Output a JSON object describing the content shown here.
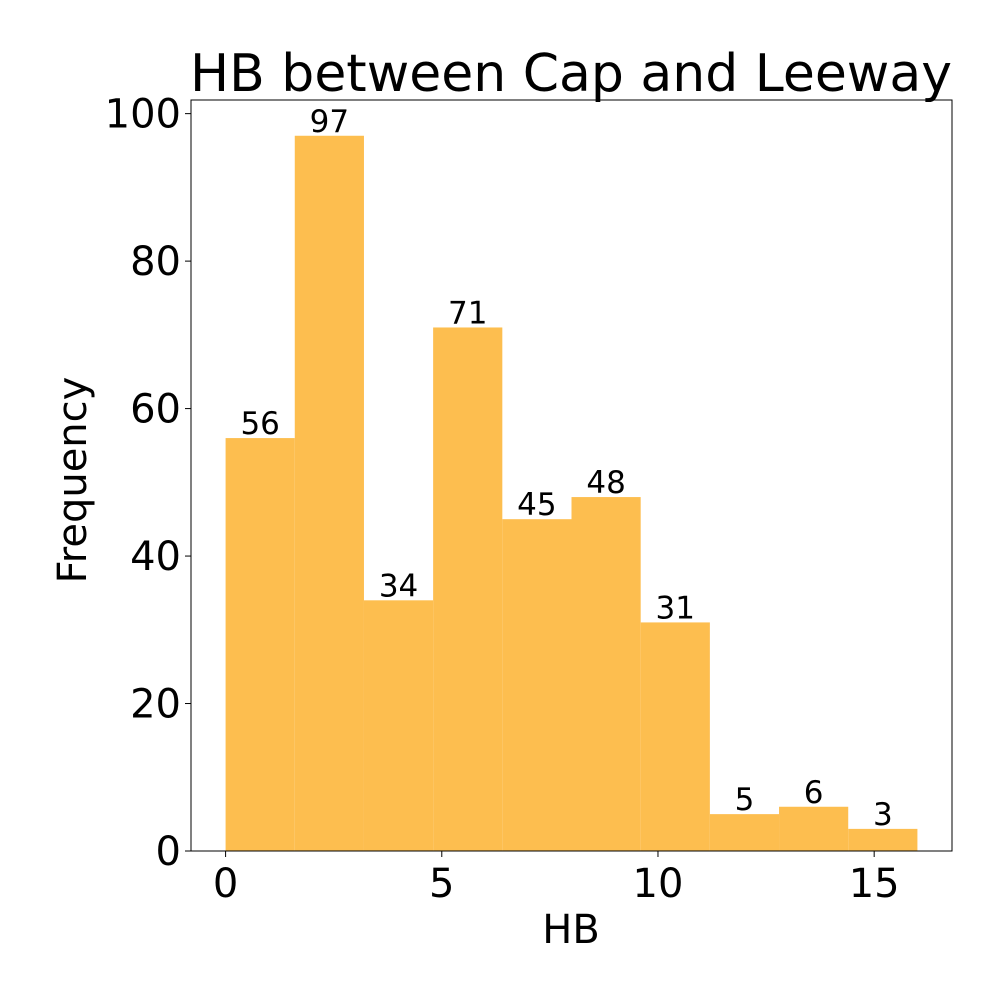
{
  "chart_data": {
    "type": "bar",
    "title": "HB between Cap and Leeway",
    "xlabel": "HB",
    "ylabel": "Frequency",
    "bin_edges": [
      0,
      1.6,
      3.2,
      4.8,
      6.4,
      8.0,
      9.6,
      11.2,
      12.8,
      14.4,
      16.0
    ],
    "values": [
      56,
      97,
      34,
      71,
      45,
      48,
      31,
      5,
      6,
      3
    ],
    "xlim": [
      -0.8,
      16.8
    ],
    "ylim": [
      0,
      101.85
    ],
    "xticks": [
      0,
      5,
      10,
      15
    ],
    "yticks": [
      0,
      20,
      40,
      60,
      80,
      100
    ],
    "bar_color": "#fdbe4f",
    "grid": false,
    "legend": "none"
  }
}
